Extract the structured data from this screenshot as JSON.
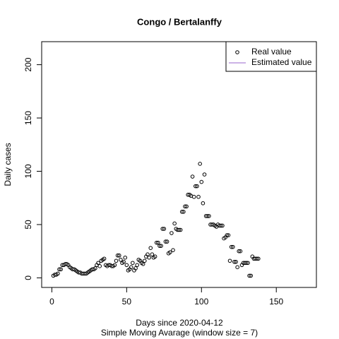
{
  "chart_data": {
    "type": "scatter",
    "title": "Congo / Bertalanffy",
    "x_label": "Days since 2020-04-12",
    "subtitle": "Simple Moving Avarage (window size = 7)",
    "y_label": "Daily cases",
    "xlim": [
      -6.8,
      176.8
    ],
    "xticks": [
      0,
      50,
      100,
      150
    ],
    "ylim": [
      -9,
      221.6
    ],
    "yticks": [
      0,
      50,
      100,
      150,
      200
    ],
    "legend_position": "topright",
    "legend": [
      {
        "name": "Real value",
        "marker": "circle",
        "color": "#000000"
      },
      {
        "name": "Estimated value",
        "marker": "line",
        "color": "#9966cc"
      }
    ],
    "series": [
      {
        "name": "Real value",
        "color": "#000000",
        "x": [
          1,
          2,
          3,
          4,
          5,
          6,
          7,
          8,
          9,
          10,
          11,
          12,
          13,
          14,
          15,
          16,
          17,
          18,
          19,
          20,
          21,
          22,
          23,
          24,
          25,
          26,
          27,
          28,
          29,
          30,
          31,
          32,
          33,
          34,
          35,
          36,
          37,
          38,
          39,
          40,
          41,
          42,
          43,
          44,
          45,
          46,
          47,
          48,
          49,
          50,
          51,
          52,
          53,
          54,
          55,
          56,
          57,
          58,
          59,
          60,
          61,
          62,
          63,
          64,
          65,
          66,
          67,
          68,
          69,
          70,
          71,
          72,
          73,
          74,
          75,
          76,
          77,
          78,
          79,
          80,
          81,
          82,
          83,
          84,
          85,
          86,
          87,
          88,
          89,
          90,
          91,
          92,
          93,
          94,
          95,
          96,
          97,
          98,
          99,
          100,
          101,
          102,
          103,
          104,
          105,
          106,
          107,
          108,
          109,
          110,
          111,
          112,
          113,
          114,
          115,
          116,
          117,
          118,
          119,
          120,
          121,
          122,
          123,
          124,
          125,
          126,
          127,
          128,
          129,
          130,
          131,
          132,
          133,
          134,
          135,
          136,
          137,
          138
        ],
        "values": [
          2,
          3,
          3,
          4,
          8,
          8,
          12,
          12,
          13,
          13,
          12,
          10,
          9,
          8,
          8,
          7,
          6,
          5,
          5,
          4,
          4,
          4,
          4,
          5,
          6,
          7,
          8,
          8,
          9,
          12,
          14,
          11,
          16,
          17,
          18,
          12,
          11,
          12,
          12,
          11,
          11,
          12,
          16,
          21,
          21,
          17,
          14,
          15,
          19,
          12,
          7,
          8,
          10,
          14,
          7,
          9,
          12,
          17,
          16,
          14,
          13,
          16,
          20,
          22,
          19,
          28,
          22,
          19,
          20,
          33,
          33,
          30,
          30,
          46,
          46,
          34,
          34,
          23,
          24,
          42,
          26,
          51,
          46,
          45,
          45,
          45,
          62,
          62,
          67,
          67,
          78,
          78,
          77,
          95,
          76,
          86,
          86,
          76,
          107,
          90,
          70,
          97,
          58,
          58,
          58,
          50,
          50,
          50,
          49,
          48,
          50,
          49,
          49,
          49,
          37,
          38,
          40,
          40,
          16,
          29,
          29,
          15,
          15,
          10,
          25,
          25,
          12,
          14,
          14,
          14,
          14,
          2,
          2,
          20,
          18,
          18,
          18,
          18
        ]
      }
    ]
  }
}
